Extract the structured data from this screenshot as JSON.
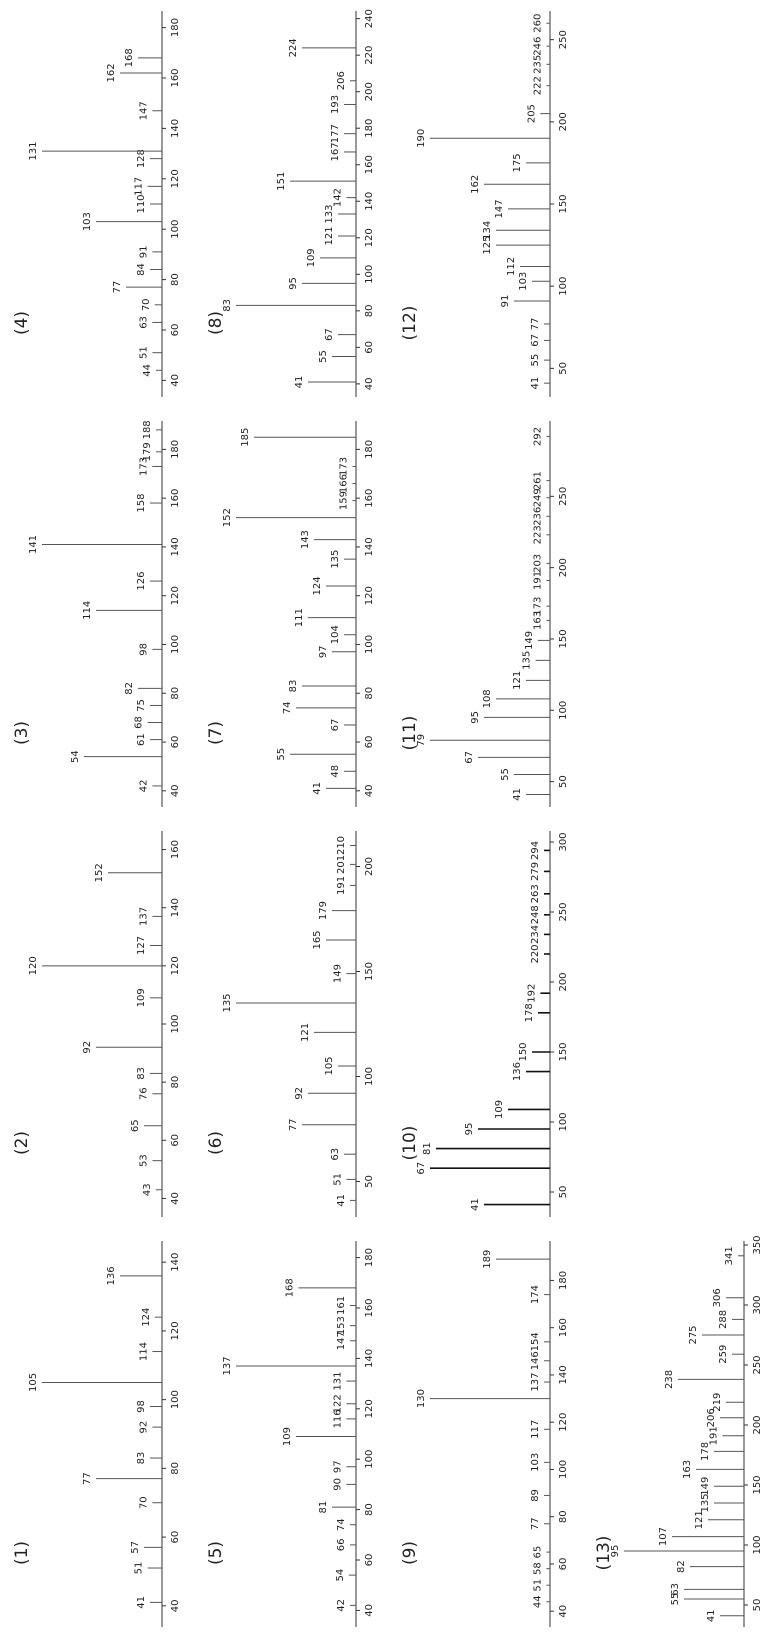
{
  "chart_data": [
    {
      "type": "bar",
      "title": "(1)",
      "color": "#555555",
      "xlim": [
        35,
        145
      ],
      "xticks": [
        40,
        60,
        80,
        100,
        120,
        140
      ],
      "ylim": [
        0,
        100
      ],
      "x": [
        41,
        51,
        57,
        70,
        77,
        83,
        92,
        98,
        105,
        114,
        124,
        136
      ],
      "values": [
        10,
        12,
        15,
        8,
        55,
        10,
        8,
        10,
        100,
        8,
        6,
        35
      ]
    },
    {
      "type": "bar",
      "title": "(2)",
      "color": "#555555",
      "xlim": [
        35,
        165
      ],
      "xticks": [
        40,
        60,
        80,
        100,
        120,
        140,
        160
      ],
      "ylim": [
        0,
        100
      ],
      "x": [
        43,
        53,
        65,
        76,
        83,
        92,
        109,
        120,
        127,
        137,
        152
      ],
      "values": [
        5,
        8,
        15,
        8,
        10,
        55,
        10,
        100,
        10,
        8,
        45
      ]
    },
    {
      "type": "bar",
      "title": "(3)",
      "color": "#555555",
      "xlim": [
        35,
        190
      ],
      "xticks": [
        40,
        60,
        80,
        100,
        120,
        140,
        160,
        180
      ],
      "ylim": [
        0,
        100
      ],
      "x": [
        42,
        54,
        61,
        68,
        75,
        82,
        98,
        114,
        126,
        141,
        158,
        173,
        179,
        188
      ],
      "values": [
        8,
        65,
        10,
        12,
        10,
        20,
        8,
        55,
        10,
        100,
        10,
        8,
        5,
        5
      ]
    },
    {
      "type": "bar",
      "title": "(4)",
      "color": "#555555",
      "xlim": [
        35,
        185
      ],
      "xticks": [
        40,
        60,
        80,
        100,
        120,
        140,
        160,
        180
      ],
      "ylim": [
        0,
        100
      ],
      "x": [
        44,
        51,
        63,
        70,
        77,
        84,
        91,
        103,
        110,
        117,
        128,
        131,
        147,
        162,
        168
      ],
      "values": [
        5,
        8,
        8,
        6,
        30,
        10,
        8,
        55,
        10,
        12,
        10,
        100,
        8,
        35,
        20
      ]
    },
    {
      "type": "bar",
      "title": "(5)",
      "color": "#555555",
      "xlim": [
        35,
        185
      ],
      "xticks": [
        40,
        60,
        80,
        100,
        120,
        140,
        160,
        180
      ],
      "ylim": [
        0,
        100
      ],
      "x": [
        42,
        54,
        66,
        74,
        81,
        90,
        97,
        109,
        116,
        122,
        131,
        137,
        147,
        153,
        161,
        168
      ],
      "values": [
        5,
        6,
        5,
        5,
        20,
        8,
        8,
        50,
        8,
        8,
        8,
        100,
        5,
        5,
        5,
        48
      ]
    },
    {
      "type": "bar",
      "title": "(6)",
      "color": "#555555",
      "xlim": [
        35,
        215
      ],
      "xticks": [
        50,
        100,
        150,
        200
      ],
      "ylim": [
        0,
        100
      ],
      "x": [
        41,
        51,
        63,
        77,
        92,
        105,
        121,
        135,
        149,
        165,
        179,
        191,
        201,
        210
      ],
      "values": [
        5,
        8,
        10,
        45,
        40,
        15,
        35,
        100,
        8,
        25,
        20,
        5,
        5,
        5
      ]
    },
    {
      "type": "bar",
      "title": "(7)",
      "color": "#555555",
      "xlim": [
        35,
        190
      ],
      "xticks": [
        40,
        60,
        80,
        100,
        120,
        140,
        160,
        180
      ],
      "ylim": [
        0,
        100
      ],
      "x": [
        41,
        48,
        55,
        67,
        74,
        83,
        97,
        104,
        111,
        124,
        135,
        143,
        152,
        159,
        166,
        173,
        185
      ],
      "values": [
        25,
        10,
        55,
        10,
        50,
        45,
        20,
        10,
        40,
        25,
        10,
        35,
        100,
        3,
        3,
        3,
        85
      ]
    },
    {
      "type": "bar",
      "title": "(8)",
      "color": "#555555",
      "xlim": [
        35,
        242
      ],
      "xticks": [
        40,
        60,
        80,
        100,
        120,
        140,
        160,
        180,
        200,
        220,
        240
      ],
      "ylim": [
        0,
        100
      ],
      "x": [
        41,
        55,
        67,
        83,
        95,
        109,
        121,
        133,
        142,
        151,
        167,
        177,
        193,
        206,
        224
      ],
      "values": [
        40,
        20,
        15,
        100,
        45,
        30,
        15,
        15,
        8,
        55,
        10,
        10,
        10,
        5,
        45
      ]
    },
    {
      "type": "bar",
      "title": "(9)",
      "color": "#555555",
      "xlim": [
        35,
        195
      ],
      "xticks": [
        40,
        60,
        80,
        100,
        120,
        140,
        160,
        180
      ],
      "ylim": [
        0,
        100
      ],
      "x": [
        44,
        51,
        58,
        65,
        77,
        89,
        103,
        117,
        130,
        137,
        146,
        154,
        174,
        189
      ],
      "values": [
        3,
        3,
        3,
        3,
        5,
        5,
        5,
        5,
        100,
        5,
        5,
        5,
        5,
        45
      ]
    },
    {
      "type": "bar",
      "title": "(10)",
      "color": "#111111",
      "xlim": [
        35,
        305
      ],
      "xticks": [
        50,
        100,
        150,
        200,
        250,
        300
      ],
      "ylim": [
        0,
        100
      ],
      "x": [
        41,
        67,
        81,
        95,
        109,
        136,
        150,
        178,
        192,
        220,
        234,
        248,
        263,
        279,
        294
      ],
      "values": [
        55,
        100,
        95,
        60,
        35,
        20,
        15,
        10,
        8,
        5,
        5,
        5,
        5,
        5,
        5
      ]
    },
    {
      "type": "bar",
      "title": "(11)",
      "color": "#555555",
      "xlim": [
        35,
        300
      ],
      "xticks": [
        50,
        100,
        150,
        200,
        250
      ],
      "ylim": [
        0,
        100
      ],
      "x": [
        41,
        55,
        67,
        79,
        95,
        108,
        121,
        135,
        149,
        163,
        173,
        191,
        203,
        223,
        236,
        249,
        261,
        292
      ],
      "values": [
        20,
        30,
        60,
        100,
        55,
        45,
        20,
        12,
        10,
        3,
        3,
        3,
        3,
        3,
        3,
        3,
        3,
        3
      ]
    },
    {
      "type": "bar",
      "title": "(12)",
      "color": "#555555",
      "xlim": [
        35,
        265
      ],
      "xticks": [
        50,
        100,
        150,
        200,
        250
      ],
      "ylim": [
        0,
        100
      ],
      "x": [
        41,
        55,
        67,
        77,
        91,
        103,
        112,
        125,
        134,
        147,
        162,
        175,
        190,
        205,
        222,
        235,
        246,
        260
      ],
      "values": [
        5,
        5,
        5,
        5,
        30,
        15,
        25,
        45,
        45,
        35,
        55,
        20,
        100,
        8,
        3,
        3,
        3,
        3
      ]
    },
    {
      "type": "bar",
      "title": "(13)",
      "color": "#555555",
      "xlim": [
        35,
        350
      ],
      "xticks": [
        50,
        100,
        150,
        200,
        250,
        300,
        350
      ],
      "ylim": [
        0,
        100
      ],
      "x": [
        41,
        55,
        63,
        82,
        95,
        107,
        121,
        135,
        149,
        163,
        178,
        191,
        206,
        219,
        238,
        259,
        275,
        288,
        306,
        341
      ],
      "values": [
        20,
        50,
        50,
        45,
        100,
        60,
        30,
        25,
        25,
        40,
        25,
        18,
        20,
        15,
        55,
        10,
        35,
        10,
        15,
        5
      ]
    }
  ]
}
